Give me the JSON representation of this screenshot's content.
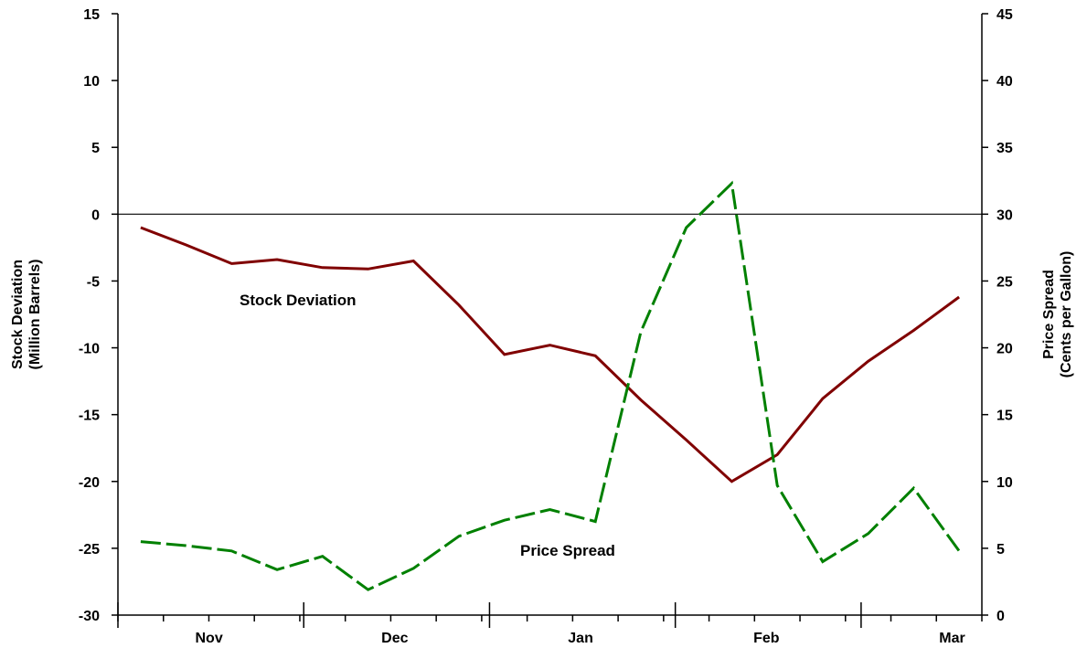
{
  "colors": {
    "stock": "#800000",
    "price": "#008000",
    "axis": "#000000",
    "background": "#ffffff"
  },
  "chart_data": {
    "type": "line",
    "x_labels": [
      "Nov",
      "Dec",
      "Jan",
      "Feb",
      "Mar"
    ],
    "ylabel_left": [
      "Stock Deviation",
      "(Million Barrels)"
    ],
    "ylabel_right": [
      "Price Spread",
      "(Cents per Gallon)"
    ],
    "ylim_left": [
      -30,
      15
    ],
    "ylim_right": [
      0,
      45
    ],
    "yticks_left": [
      "15",
      "10",
      "5",
      "0",
      "-5",
      "-10",
      "-15",
      "-20",
      "-25",
      "-30"
    ],
    "yticks_right": [
      "45",
      "40",
      "35",
      "30",
      "25",
      "20",
      "15",
      "10",
      "5",
      "0"
    ],
    "zero_line": true,
    "grid": false,
    "series": [
      {
        "name": "Stock Deviation",
        "axis": "left",
        "style": "solid",
        "values": [
          -1.0,
          -2.3,
          -3.7,
          -3.4,
          -4.0,
          -4.1,
          -3.5,
          -6.8,
          -10.5,
          -9.8,
          -10.6,
          -13.9,
          -16.9,
          -20.0,
          -18.0,
          -13.8,
          -11.0,
          -8.7,
          -6.2
        ]
      },
      {
        "name": "Price Spread",
        "axis": "right",
        "style": "dashed",
        "values": [
          5.5,
          5.2,
          4.8,
          3.4,
          4.4,
          1.9,
          3.5,
          5.9,
          7.1,
          7.9,
          7.0,
          21.2,
          29.0,
          32.3,
          9.7,
          4.0,
          6.1,
          9.5,
          4.8
        ]
      }
    ],
    "annotations": [
      "Stock Deviation",
      "Price Spread"
    ]
  }
}
